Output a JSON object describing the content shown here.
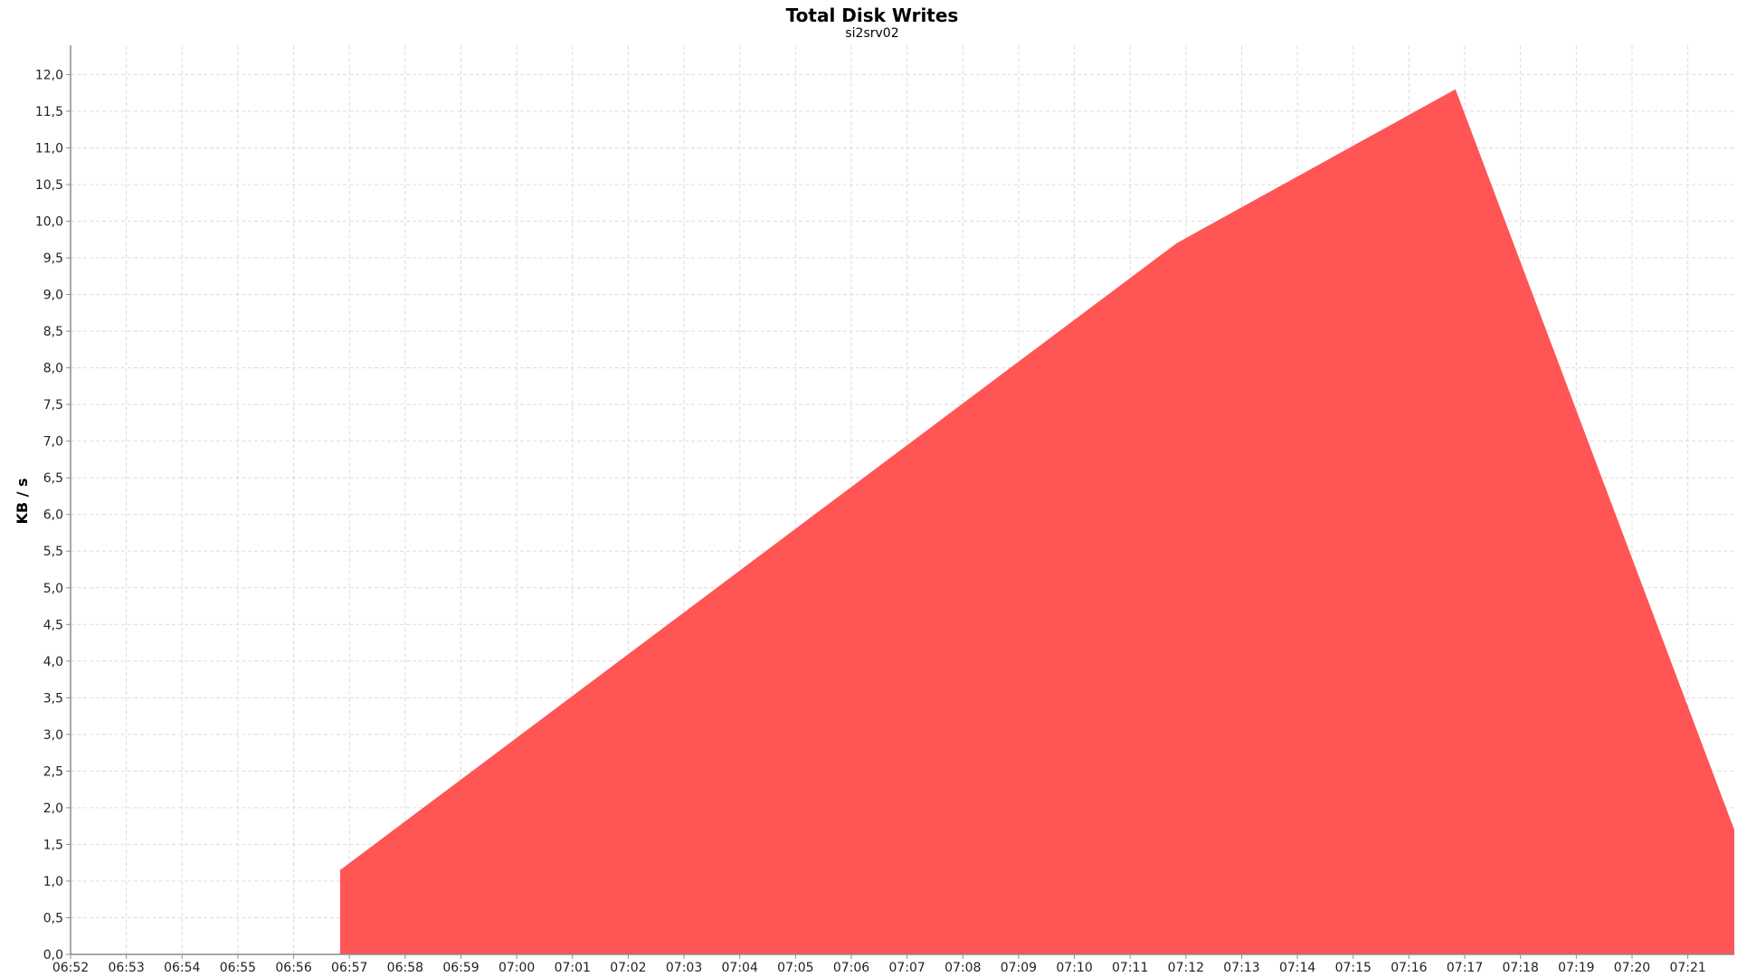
{
  "chart_data": {
    "type": "area",
    "title": "Total Disk Writes",
    "subtitle": "si2srv02",
    "xlabel": "",
    "ylabel": "KB / s",
    "x_ticks": [
      "06:52",
      "06:53",
      "06:54",
      "06:55",
      "06:56",
      "06:57",
      "06:58",
      "06:59",
      "07:00",
      "07:01",
      "07:02",
      "07:03",
      "07:04",
      "07:05",
      "07:06",
      "07:07",
      "07:08",
      "07:09",
      "07:10",
      "07:11",
      "07:12",
      "07:13",
      "07:14",
      "07:15",
      "07:16",
      "07:17",
      "07:18",
      "07:19",
      "07:20",
      "07:21"
    ],
    "xlim": [
      "06:52",
      "07:21:50"
    ],
    "y_ticks": [
      "0,0",
      "0,5",
      "1,0",
      "1,5",
      "2,0",
      "2,5",
      "3,0",
      "3,5",
      "4,0",
      "4,5",
      "5,0",
      "5,5",
      "6,0",
      "6,5",
      "7,0",
      "7,5",
      "8,0",
      "8,5",
      "9,0",
      "9,5",
      "10,0",
      "10,5",
      "11,0",
      "11,5",
      "12,0"
    ],
    "ylim": [
      0,
      12.4
    ],
    "grid": true,
    "color": "#ff5555",
    "series": [
      {
        "points": [
          {
            "x": "06:56:50",
            "y": 0.0
          },
          {
            "x": "06:56:50",
            "y": 1.15
          },
          {
            "x": "07:11:50",
            "y": 9.7
          },
          {
            "x": "07:16:50",
            "y": 11.8
          },
          {
            "x": "07:21:50",
            "y": 1.7
          },
          {
            "x": "07:21:50",
            "y": 0.0
          }
        ]
      }
    ]
  }
}
